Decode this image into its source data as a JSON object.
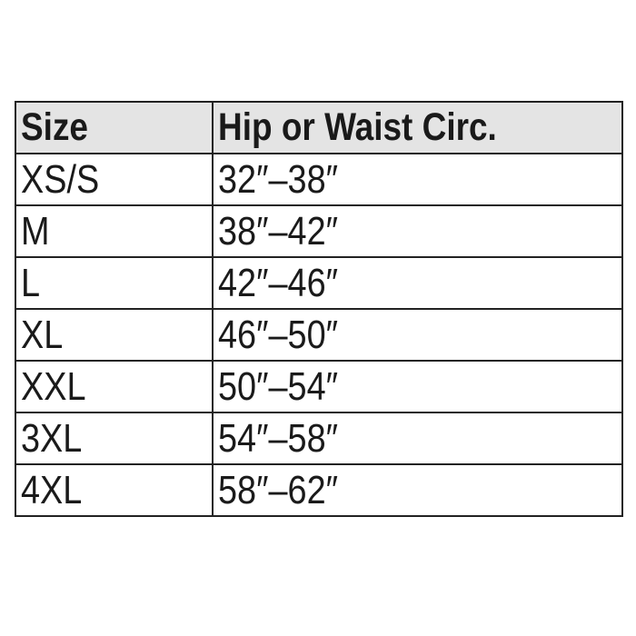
{
  "table": {
    "headers": [
      "Size",
      "Hip or Waist Circ."
    ],
    "rows": [
      [
        "XS/S",
        "32″–38″"
      ],
      [
        "M",
        "38″–42″"
      ],
      [
        "L",
        "42″–46″"
      ],
      [
        "XL",
        "46″–50″"
      ],
      [
        "XXL",
        "50″–54″"
      ],
      [
        "3XL",
        "54″–58″"
      ],
      [
        "4XL",
        "58″–62″"
      ]
    ],
    "header_background": "#e4e4e4",
    "border_color": "#222222"
  }
}
